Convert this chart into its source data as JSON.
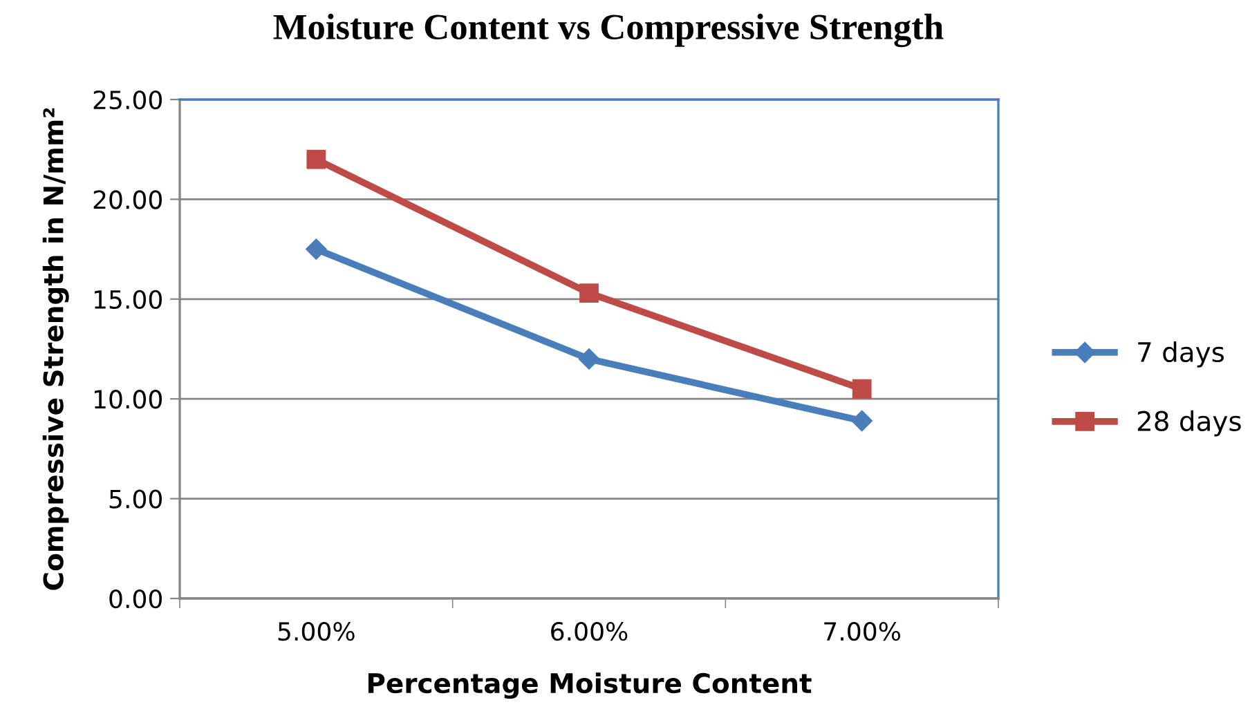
{
  "chart_data": {
    "type": "line",
    "title": "Moisture Content vs Compressive Strength",
    "xlabel": "Percentage Moisture Content",
    "ylabel": "Compressive Strength in N/mm²",
    "categories": [
      "5.00%",
      "6.00%",
      "7.00%"
    ],
    "series": [
      {
        "name": "7 days",
        "color": "#4a7ebb",
        "values": [
          17.5,
          12.0,
          8.9
        ],
        "marker": "diamond"
      },
      {
        "name": "28 days",
        "color": "#be4b48",
        "values": [
          22.0,
          15.3,
          10.5
        ],
        "marker": "square"
      }
    ],
    "ylim": [
      0,
      25
    ],
    "yticks": [
      {
        "value": 0,
        "label": "0.00"
      },
      {
        "value": 5,
        "label": "5.00"
      },
      {
        "value": 10,
        "label": "10.00"
      },
      {
        "value": 15,
        "label": "15.00"
      },
      {
        "value": 20,
        "label": "20.00"
      },
      {
        "value": 25,
        "label": "25.00"
      }
    ],
    "grid": "y",
    "legend": "right",
    "line_style": "solid"
  }
}
